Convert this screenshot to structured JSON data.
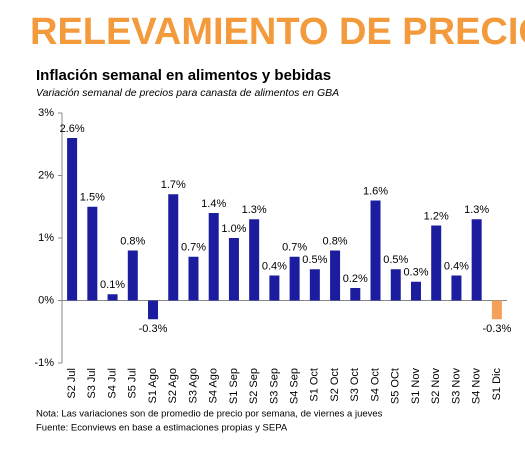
{
  "header": "RELEVAMIENTO DE PRECIOS",
  "chart_data": {
    "type": "bar",
    "title": "Inflación semanal en alimentos y bebidas",
    "subtitle": "Variación semanal de precios para canasta de alimentos en GBA",
    "categories": [
      "S2 Jul",
      "S3 Jul",
      "S4 Jul",
      "S5 Jul",
      "S1 Ago",
      "S2 Ago",
      "S3 Ago",
      "S4 Ago",
      "S1 Sep",
      "S2 Sep",
      "S3 Sep",
      "S4 Sep",
      "S1 Oct",
      "S2 Oct",
      "S3 Oct",
      "S4 Oct",
      "S5 OCt",
      "S1 Nov",
      "S2 Nov",
      "S3 Nov",
      "S4 Nov",
      "S1 Dic"
    ],
    "values": [
      2.6,
      1.5,
      0.1,
      0.8,
      -0.3,
      1.7,
      0.7,
      1.4,
      1.0,
      1.3,
      0.4,
      0.7,
      0.5,
      0.8,
      0.2,
      1.6,
      0.5,
      0.3,
      1.2,
      0.4,
      1.3,
      -0.3
    ],
    "value_labels": [
      "2.6%",
      "1.5%",
      "0.1%",
      "0.8%",
      "-0.3%",
      "1.7%",
      "0.7%",
      "1.4%",
      "1.0%",
      "1.3%",
      "0.4%",
      "0.7%",
      "0.5%",
      "0.8%",
      "0.2%",
      "1.6%",
      "0.5%",
      "0.3%",
      "1.2%",
      "0.4%",
      "1.3%",
      "-0.3%"
    ],
    "colors": [
      "#1c1c9e",
      "#1c1c9e",
      "#1c1c9e",
      "#1c1c9e",
      "#1c1c9e",
      "#1c1c9e",
      "#1c1c9e",
      "#1c1c9e",
      "#1c1c9e",
      "#1c1c9e",
      "#1c1c9e",
      "#1c1c9e",
      "#1c1c9e",
      "#1c1c9e",
      "#1c1c9e",
      "#1c1c9e",
      "#1c1c9e",
      "#1c1c9e",
      "#1c1c9e",
      "#1c1c9e",
      "#1c1c9e",
      "#f5a05a"
    ],
    "ylim": [
      -1,
      3
    ],
    "yticks": [
      {
        "value": -1,
        "label": "-1%"
      },
      {
        "value": 0,
        "label": "0%"
      },
      {
        "value": 1,
        "label": "1%"
      },
      {
        "value": 2,
        "label": "2%"
      },
      {
        "value": 3,
        "label": "3%"
      }
    ],
    "notes": [
      "Nota: Las variaciones son de promedio de precio por semana, de viernes a jueves",
      "Fuente: Econviews en base a estimaciones propias y SEPA"
    ]
  }
}
